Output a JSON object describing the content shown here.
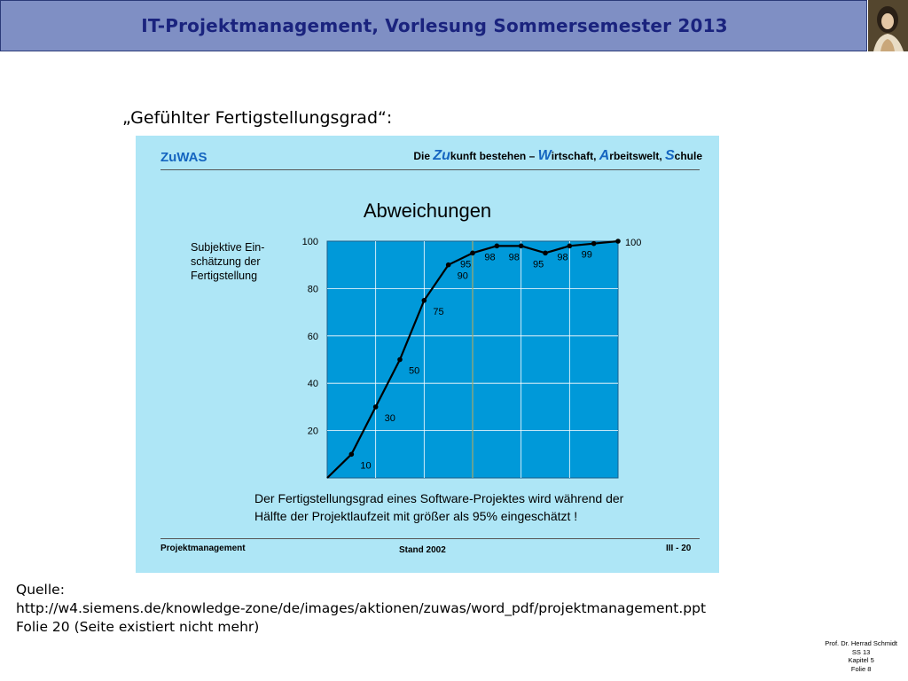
{
  "header": {
    "title": "IT-Projektmanagement, Vorlesung Sommersemester 2013"
  },
  "slide": {
    "heading": "„Gefühlter Fertigstellungsgrad“:"
  },
  "panel": {
    "brand": "ZuWAS",
    "tagline": {
      "p1": "Die ",
      "b1": "Zu",
      "p2": "kunft bestehen – ",
      "b2": "W",
      "p3": "irtschaft, ",
      "b3": "A",
      "p4": "rbeitswelt, ",
      "b4": "S",
      "p5": "chule"
    },
    "caption_line1": "Der Fertigstellungsgrad eines Software-Projektes wird während der",
    "caption_line2": "Hälfte der Projektlaufzeit mit größer als 95% eingeschätzt !",
    "footer_left": "Projektmanagement",
    "footer_mid": "Stand 2002",
    "footer_right": "III - 20"
  },
  "chart_data": {
    "type": "line",
    "title": "Abweichungen",
    "ylabel_lines": [
      "Subjektive Ein-",
      "schätzung der",
      "Fertigstellung"
    ],
    "xlabel": "",
    "ylim": [
      0,
      100
    ],
    "y_ticks": [
      20,
      40,
      60,
      80,
      100
    ],
    "x": [
      0,
      1,
      2,
      3,
      4,
      5,
      6,
      7,
      8,
      9,
      10,
      11,
      12
    ],
    "values": [
      0,
      10,
      30,
      50,
      75,
      90,
      95,
      98,
      98,
      95,
      98,
      99,
      100
    ],
    "point_labels": [
      "",
      "10",
      "30",
      "50",
      "75",
      "90",
      "95",
      "98",
      "98",
      "95",
      "98",
      "99",
      "100"
    ],
    "highlight_x": 6,
    "grid": true,
    "colors": {
      "plot_bg": "#0099d9",
      "panel_bg": "#aee6f6",
      "line": "#000000",
      "grid": "#ffffff",
      "highlight": "#a5a86a"
    }
  },
  "source": {
    "line1": "Quelle:",
    "line2": "http://w4.siemens.de/knowledge-zone/de/images/aktionen/zuwas/word_pdf/projektmanagement.ppt",
    "line3": "Folie 20 (Seite existiert nicht mehr)"
  },
  "meta": {
    "author": "Prof. Dr. Herrad Schmidt",
    "term": "SS 13",
    "chapter": "Kapitel 5",
    "slide": "Folie 8"
  }
}
